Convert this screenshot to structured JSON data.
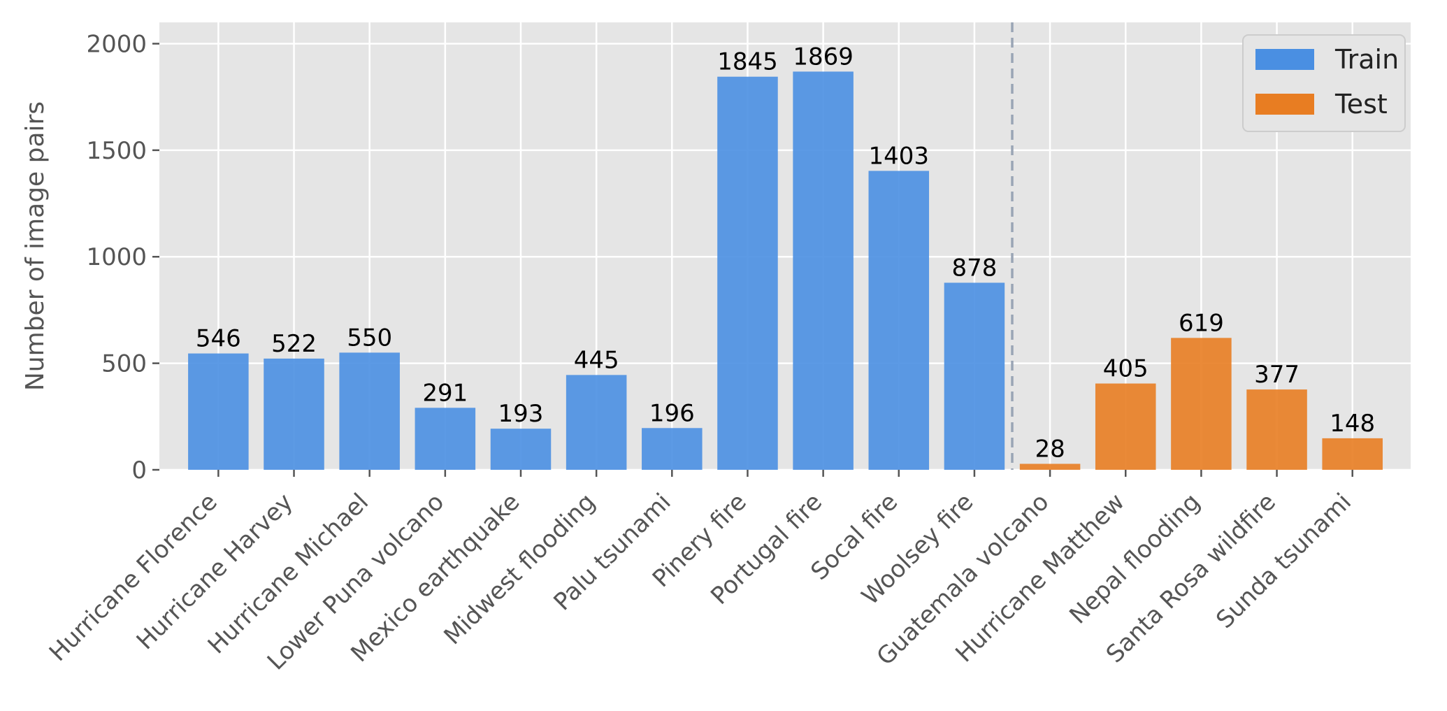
{
  "chart_data": {
    "type": "bar",
    "title": "",
    "xlabel": "",
    "ylabel": "Number of image pairs",
    "ylim": [
      0,
      2100
    ],
    "yticks": [
      0,
      500,
      1000,
      1500,
      2000
    ],
    "grid": true,
    "legend_position": "top-right",
    "categories": [
      "Hurricane Florence",
      "Hurricane Harvey",
      "Hurricane Michael",
      "Lower Puna volcano",
      "Mexico earthquake",
      "Midwest flooding",
      "Palu tsunami",
      "Pinery fire",
      "Portugal fire",
      "Socal fire",
      "Woolsey fire",
      "Guatemala volcano",
      "Hurricane Matthew",
      "Nepal flooding",
      "Santa Rosa wildfire",
      "Sunda tsunami"
    ],
    "values": [
      546,
      522,
      550,
      291,
      193,
      445,
      196,
      1845,
      1869,
      1403,
      878,
      28,
      405,
      619,
      377,
      148
    ],
    "groups": [
      "train",
      "train",
      "train",
      "train",
      "train",
      "train",
      "train",
      "train",
      "train",
      "train",
      "train",
      "test",
      "test",
      "test",
      "test",
      "test"
    ],
    "series": [
      {
        "name": "Train",
        "color": "#4a8fe2"
      },
      {
        "name": "Test",
        "color": "#e87d22"
      }
    ],
    "divider_after_index": 10,
    "divider_color": "#9aa5b5",
    "background_color": "#e5e5e5",
    "grid_color": "#ffffff"
  }
}
